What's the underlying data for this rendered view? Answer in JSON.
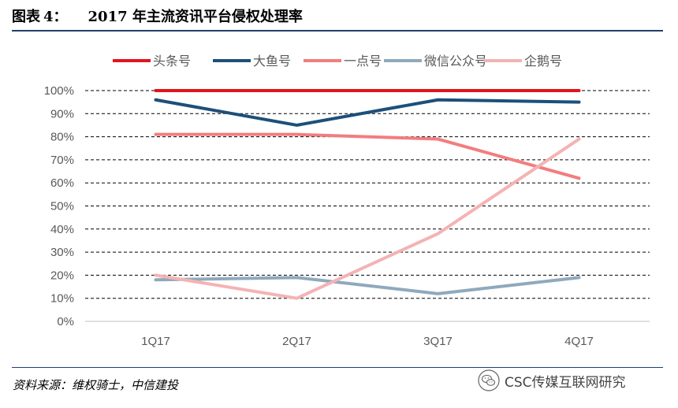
{
  "header": {
    "figure_label": "图表",
    "figure_number": "4：",
    "title": "2017 年主流资讯平台侵权处理率"
  },
  "chart_data": {
    "type": "line",
    "title": "",
    "xlabel": "",
    "ylabel": "",
    "categories": [
      "1Q17",
      "2Q17",
      "3Q17",
      "4Q17"
    ],
    "ylim": [
      0,
      100
    ],
    "yticks": [
      "0%",
      "10%",
      "20%",
      "30%",
      "40%",
      "50%",
      "60%",
      "70%",
      "80%",
      "90%",
      "100%"
    ],
    "grid": "horizontal dashed",
    "legend_position": "top",
    "series": [
      {
        "name": "头条号",
        "color": "#e3141c",
        "values": [
          100,
          100,
          100,
          100
        ]
      },
      {
        "name": "大鱼号",
        "color": "#1d4f7a",
        "values": [
          96,
          85,
          96,
          95
        ]
      },
      {
        "name": "一点号",
        "color": "#f27d7f",
        "values": [
          81,
          81,
          79,
          62
        ]
      },
      {
        "name": "微信公众号",
        "color": "#8fa9bd",
        "values": [
          18,
          19,
          12,
          19
        ]
      },
      {
        "name": "企鹅号",
        "color": "#f4b3b4",
        "values": [
          20,
          10,
          38,
          79
        ]
      }
    ]
  },
  "footer": {
    "source": "资料来源：维权骑士，中信建投",
    "watermark": "CSC传媒互联网研究",
    "watermark_icon": "wechat-icon"
  }
}
